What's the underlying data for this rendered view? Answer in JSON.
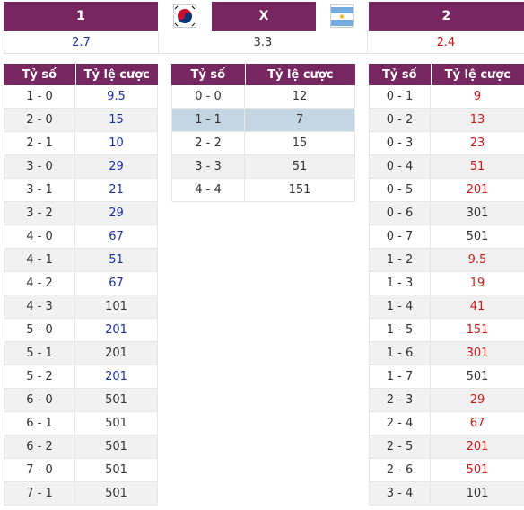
{
  "header": {
    "home_label": "1",
    "draw_label": "X",
    "away_label": "2",
    "home_flag": "south-korea-flag-icon",
    "away_flag": "argentina-flag-icon"
  },
  "main_odds": {
    "home": "2.7",
    "draw": "3.3",
    "away": "2.4"
  },
  "colors": {
    "header_bg": "#76275f",
    "home_odds": "#1a32a6",
    "away_odds": "#cc1a1a",
    "highlight": "#c4d6e1"
  },
  "columns": {
    "score": "Tỷ số",
    "odds": "Tỷ lệ cược"
  },
  "home_wins": [
    {
      "score": "1 - 0",
      "odds": "9.5",
      "color": "blue"
    },
    {
      "score": "2 - 0",
      "odds": "15",
      "color": "blue"
    },
    {
      "score": "2 - 1",
      "odds": "10",
      "color": "blue"
    },
    {
      "score": "3 - 0",
      "odds": "29",
      "color": "blue"
    },
    {
      "score": "3 - 1",
      "odds": "21",
      "color": "blue"
    },
    {
      "score": "3 - 2",
      "odds": "29",
      "color": "blue"
    },
    {
      "score": "4 - 0",
      "odds": "67",
      "color": "blue"
    },
    {
      "score": "4 - 1",
      "odds": "51",
      "color": "blue"
    },
    {
      "score": "4 - 2",
      "odds": "67",
      "color": "blue"
    },
    {
      "score": "4 - 3",
      "odds": "101",
      "color": "black"
    },
    {
      "score": "5 - 0",
      "odds": "201",
      "color": "blue"
    },
    {
      "score": "5 - 1",
      "odds": "201",
      "color": "black"
    },
    {
      "score": "5 - 2",
      "odds": "201",
      "color": "blue"
    },
    {
      "score": "6 - 0",
      "odds": "501",
      "color": "black"
    },
    {
      "score": "6 - 1",
      "odds": "501",
      "color": "black"
    },
    {
      "score": "6 - 2",
      "odds": "501",
      "color": "black"
    },
    {
      "score": "7 - 0",
      "odds": "501",
      "color": "black"
    },
    {
      "score": "7 - 1",
      "odds": "501",
      "color": "black"
    }
  ],
  "draws": [
    {
      "score": "0 - 0",
      "odds": "12",
      "color": "black"
    },
    {
      "score": "1 - 1",
      "odds": "7",
      "color": "black",
      "highlight": true
    },
    {
      "score": "2 - 2",
      "odds": "15",
      "color": "black"
    },
    {
      "score": "3 - 3",
      "odds": "51",
      "color": "black"
    },
    {
      "score": "4 - 4",
      "odds": "151",
      "color": "black"
    }
  ],
  "away_wins": [
    {
      "score": "0 - 1",
      "odds": "9",
      "color": "red"
    },
    {
      "score": "0 - 2",
      "odds": "13",
      "color": "red"
    },
    {
      "score": "0 - 3",
      "odds": "23",
      "color": "red"
    },
    {
      "score": "0 - 4",
      "odds": "51",
      "color": "red"
    },
    {
      "score": "0 - 5",
      "odds": "201",
      "color": "red"
    },
    {
      "score": "0 - 6",
      "odds": "301",
      "color": "black"
    },
    {
      "score": "0 - 7",
      "odds": "501",
      "color": "black"
    },
    {
      "score": "1 - 2",
      "odds": "9.5",
      "color": "red"
    },
    {
      "score": "1 - 3",
      "odds": "19",
      "color": "red"
    },
    {
      "score": "1 - 4",
      "odds": "41",
      "color": "red"
    },
    {
      "score": "1 - 5",
      "odds": "151",
      "color": "red"
    },
    {
      "score": "1 - 6",
      "odds": "301",
      "color": "red"
    },
    {
      "score": "1 - 7",
      "odds": "501",
      "color": "black"
    },
    {
      "score": "2 - 3",
      "odds": "29",
      "color": "red"
    },
    {
      "score": "2 - 4",
      "odds": "67",
      "color": "red"
    },
    {
      "score": "2 - 5",
      "odds": "201",
      "color": "red"
    },
    {
      "score": "2 - 6",
      "odds": "501",
      "color": "red"
    },
    {
      "score": "3 - 4",
      "odds": "101",
      "color": "black"
    }
  ]
}
